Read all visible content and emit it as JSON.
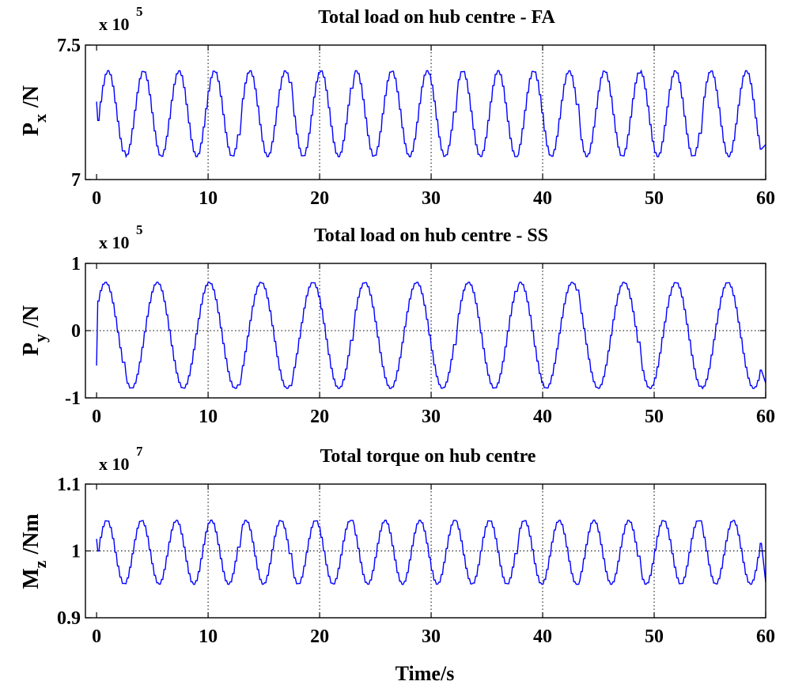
{
  "chart_data": [
    {
      "type": "line",
      "title": "Total load on hub centre - FA",
      "ylabel": "/N",
      "ylabel_symbol": "P",
      "ylabel_subscript": "x",
      "exponent_base": "x 10",
      "exponent_power": "5",
      "xlim": [
        -1,
        60
      ],
      "ylim": [
        7,
        7.5
      ],
      "xticks": [
        "0",
        "10",
        "20",
        "30",
        "40",
        "50",
        "60"
      ],
      "yticks": [
        "7",
        "7.5"
      ],
      "ytick_values": [
        7,
        7.5
      ],
      "grid_y": [],
      "mean": 7.245,
      "amplitude": 0.16,
      "period": 3.18,
      "phase": 0.3,
      "start_value": 7.29,
      "end_value": 7.13,
      "series": [
        {
          "values_desc": "sinusoid",
          "color": "#0000ff"
        }
      ]
    },
    {
      "type": "line",
      "title": "Total load on hub centre - SS",
      "ylabel": "/N",
      "ylabel_symbol": "P",
      "ylabel_subscript": "y",
      "exponent_base": "x 10",
      "exponent_power": "5",
      "xlim": [
        -1,
        60
      ],
      "ylim": [
        -1,
        1
      ],
      "xticks": [
        "0",
        "10",
        "20",
        "30",
        "40",
        "50",
        "60"
      ],
      "yticks": [
        "-1",
        "0",
        "1"
      ],
      "ytick_values": [
        -1,
        0,
        1
      ],
      "grid_y": [
        0
      ],
      "mean": -0.07,
      "amplitude": 0.79,
      "period": 4.65,
      "phase": -0.3,
      "start_value": -0.52,
      "end_value": -0.78,
      "series": [
        {
          "values_desc": "sinusoid",
          "color": "#0000ff"
        }
      ]
    },
    {
      "type": "line",
      "title": "Total torque on hub centre",
      "ylabel": "/Nm",
      "ylabel_symbol": "M",
      "ylabel_subscript": "z",
      "exponent_base": "x 10",
      "exponent_power": "7",
      "xlim": [
        -1,
        60
      ],
      "ylim": [
        0.9,
        1.1
      ],
      "xticks": [
        "0",
        "10",
        "20",
        "30",
        "40",
        "50",
        "60"
      ],
      "yticks": [
        "0.9",
        "1",
        "1.1"
      ],
      "ytick_values": [
        0.9,
        1,
        1.1
      ],
      "grid_y": [
        1
      ],
      "mean": 0.998,
      "amplitude": 0.048,
      "period": 3.12,
      "phase": 0.2,
      "start_value": 1.018,
      "end_value": 0.953,
      "series": [
        {
          "values_desc": "sinusoid",
          "color": "#0000ff"
        }
      ]
    }
  ],
  "xlabel": "Time/s",
  "grid_x": [
    10,
    20,
    30,
    40,
    50
  ],
  "colors": {
    "line": "#0000ff",
    "axis": "#000000",
    "grid": "#000000"
  }
}
